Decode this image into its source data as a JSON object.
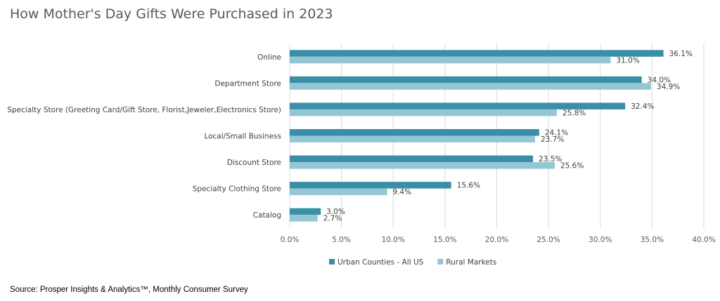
{
  "chart_data": {
    "type": "bar",
    "orientation": "horizontal",
    "title": "How Mother's Day Gifts Were Purchased in 2023",
    "categories": [
      "Online",
      "Department Store",
      "Specialty Store (Greeting Card/Gift Store,  Florist,Jeweler,Electronics Store)",
      "Local/Small Business",
      "Discount Store",
      "Specialty Clothing Store",
      "Catalog"
    ],
    "series": [
      {
        "name": "Urban Counties - All US",
        "color": "#3a8fa6",
        "values": [
          36.1,
          34.0,
          32.4,
          24.1,
          23.5,
          15.6,
          3.0
        ]
      },
      {
        "name": "Rural Markets",
        "color": "#94c6d5",
        "values": [
          31.0,
          34.9,
          25.8,
          23.7,
          25.6,
          9.4,
          2.7
        ]
      }
    ],
    "xlim": [
      0,
      40
    ],
    "xticks": [
      0,
      5,
      10,
      15,
      20,
      25,
      30,
      35,
      40
    ],
    "tick_format": "percent_1dp",
    "value_labels": true,
    "grid": true,
    "legend_position": "bottom"
  },
  "source": "Source: Prosper Insights & Analytics™, Monthly Consumer Survey"
}
